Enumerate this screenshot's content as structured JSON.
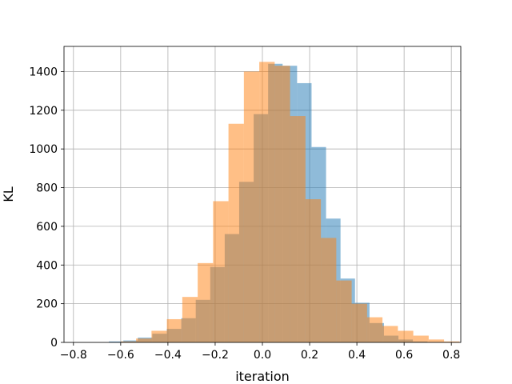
{
  "chart_data": {
    "type": "bar",
    "title": "",
    "xlabel": "iteration",
    "ylabel": "KL",
    "xlim": [
      -0.84,
      0.84
    ],
    "ylim": [
      0,
      1530
    ],
    "x_ticks": [
      -0.8,
      -0.6,
      -0.4,
      -0.2,
      0.0,
      0.2,
      0.4,
      0.6,
      0.8
    ],
    "x_tick_labels": [
      "−0.8",
      "−0.6",
      "−0.4",
      "−0.2",
      "0.0",
      "0.2",
      "0.4",
      "0.6",
      "0.8"
    ],
    "y_ticks": [
      0,
      200,
      400,
      600,
      800,
      1000,
      1200,
      1400
    ],
    "y_tick_labels": [
      "0",
      "200",
      "400",
      "600",
      "800",
      "1000",
      "1200",
      "1400"
    ],
    "grid": true,
    "legend": false,
    "series": [
      {
        "color": "#1f77b4",
        "alpha": 0.5,
        "bin_start": -0.65,
        "bin_width": 0.0613,
        "values": [
          5,
          10,
          25,
          45,
          70,
          125,
          220,
          390,
          560,
          830,
          1180,
          1440,
          1430,
          1340,
          1010,
          640,
          330,
          205,
          100,
          35,
          15,
          5,
          2,
          1
        ]
      },
      {
        "color": "#ff7f0e",
        "alpha": 0.5,
        "bin_start": -0.6,
        "bin_width": 0.0652,
        "values": [
          5,
          20,
          60,
          120,
          235,
          410,
          730,
          1130,
          1400,
          1450,
          1430,
          1170,
          740,
          540,
          320,
          200,
          130,
          85,
          60,
          35,
          15,
          5
        ]
      }
    ]
  }
}
